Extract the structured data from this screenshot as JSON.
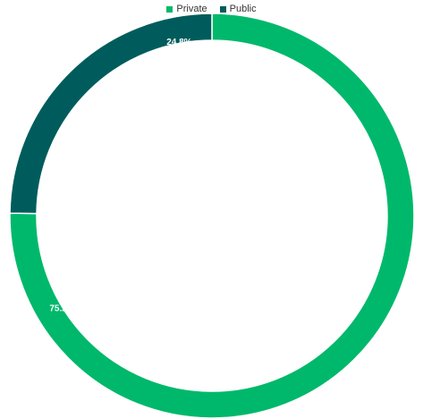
{
  "chart_data": {
    "type": "pie",
    "donut": true,
    "legend_position": "top",
    "title": "",
    "categories": [
      "Private",
      "Public"
    ],
    "values": [
      75.2,
      24.8
    ],
    "labels": [
      "75.2%",
      "24.8%"
    ],
    "colors": [
      "#00b86b",
      "#005c5c"
    ]
  }
}
